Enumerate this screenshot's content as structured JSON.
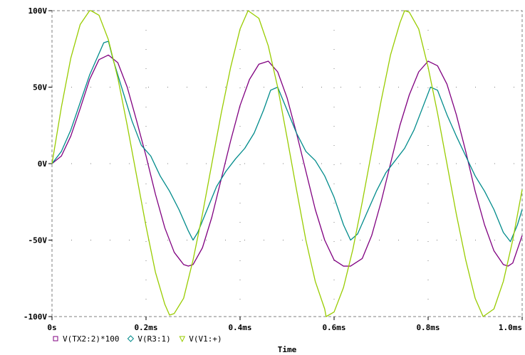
{
  "chart_data": {
    "type": "line",
    "xlabel": "Time",
    "ylabel": "",
    "xlim": [
      0,
      1.0
    ],
    "ylim": [
      -100,
      100
    ],
    "x_ticks": [
      0,
      0.2,
      0.4,
      0.6,
      0.8,
      1.0
    ],
    "x_tick_labels": [
      "0s",
      "0.2ms",
      "0.4ms",
      "0.6ms",
      "0.8ms",
      "1.0ms"
    ],
    "y_ticks": [
      100,
      50,
      0,
      -50,
      -100
    ],
    "y_tick_labels": [
      "100V",
      "50V",
      "0V",
      "-50V",
      "-100V"
    ],
    "grid": "dotted",
    "legend_position": "bottom-left",
    "series": [
      {
        "name": "V(TX2:2)*100",
        "color": "#800080",
        "marker": "square",
        "x": [
          0,
          0.02,
          0.04,
          0.06,
          0.08,
          0.1,
          0.12,
          0.14,
          0.16,
          0.18,
          0.2,
          0.22,
          0.24,
          0.26,
          0.28,
          0.29,
          0.3,
          0.32,
          0.34,
          0.36,
          0.38,
          0.4,
          0.42,
          0.44,
          0.46,
          0.48,
          0.5,
          0.52,
          0.54,
          0.56,
          0.58,
          0.6,
          0.62,
          0.635,
          0.66,
          0.68,
          0.7,
          0.72,
          0.74,
          0.76,
          0.78,
          0.8,
          0.82,
          0.84,
          0.86,
          0.88,
          0.9,
          0.92,
          0.94,
          0.96,
          0.97,
          0.98,
          1.0
        ],
        "y": [
          0,
          5,
          18,
          36,
          55,
          68,
          71,
          66,
          50,
          28,
          5,
          -20,
          -42,
          -58,
          -66,
          -67,
          -66,
          -55,
          -35,
          -10,
          15,
          38,
          55,
          65,
          67,
          60,
          43,
          20,
          -5,
          -30,
          -50,
          -63,
          -67,
          -67,
          -62,
          -47,
          -25,
          0,
          25,
          45,
          60,
          67,
          64,
          52,
          32,
          8,
          -18,
          -40,
          -57,
          -66,
          -67,
          -65,
          -47
        ]
      },
      {
        "name": "V(R3:1)",
        "color": "#008b8b",
        "marker": "diamond",
        "x": [
          0,
          0.02,
          0.04,
          0.06,
          0.08,
          0.1,
          0.11,
          0.12,
          0.13,
          0.15,
          0.17,
          0.19,
          0.21,
          0.23,
          0.25,
          0.27,
          0.29,
          0.3,
          0.31,
          0.33,
          0.35,
          0.37,
          0.39,
          0.41,
          0.43,
          0.45,
          0.465,
          0.48,
          0.5,
          0.52,
          0.54,
          0.56,
          0.58,
          0.6,
          0.62,
          0.635,
          0.65,
          0.67,
          0.69,
          0.71,
          0.73,
          0.75,
          0.77,
          0.79,
          0.805,
          0.82,
          0.84,
          0.86,
          0.88,
          0.9,
          0.92,
          0.94,
          0.96,
          0.975,
          0.99,
          1.0
        ],
        "y": [
          0,
          8,
          22,
          40,
          58,
          72,
          79,
          80,
          68,
          48,
          28,
          12,
          5,
          -8,
          -18,
          -30,
          -44,
          -50,
          -45,
          -30,
          -15,
          -5,
          3,
          10,
          20,
          35,
          48,
          50,
          35,
          20,
          8,
          2,
          -8,
          -22,
          -40,
          -50,
          -46,
          -32,
          -18,
          -6,
          2,
          10,
          22,
          38,
          50,
          48,
          32,
          18,
          5,
          -8,
          -18,
          -30,
          -45,
          -51,
          -40,
          -30
        ]
      },
      {
        "name": "V(V1:+)",
        "color": "#99cc00",
        "marker": "triangle",
        "x": [
          0,
          0.02,
          0.04,
          0.06,
          0.08,
          0.083,
          0.1,
          0.12,
          0.14,
          0.16,
          0.18,
          0.2,
          0.22,
          0.24,
          0.25,
          0.26,
          0.28,
          0.3,
          0.32,
          0.34,
          0.36,
          0.38,
          0.4,
          0.417,
          0.44,
          0.46,
          0.48,
          0.5,
          0.52,
          0.54,
          0.56,
          0.58,
          0.583,
          0.6,
          0.62,
          0.64,
          0.66,
          0.68,
          0.7,
          0.72,
          0.74,
          0.75,
          0.76,
          0.78,
          0.8,
          0.82,
          0.84,
          0.86,
          0.88,
          0.9,
          0.917,
          0.94,
          0.96,
          0.98,
          1.0
        ],
        "y": [
          0,
          37,
          69,
          91,
          100,
          100,
          97,
          81,
          56,
          25,
          -8,
          -41,
          -71,
          -92,
          -99,
          -98,
          -88,
          -63,
          -33,
          0,
          33,
          63,
          88,
          100,
          95,
          77,
          50,
          17,
          -17,
          -50,
          -77,
          -95,
          -100,
          -97,
          -81,
          -56,
          -25,
          8,
          41,
          71,
          92,
          100,
          99,
          88,
          63,
          33,
          0,
          -33,
          -63,
          -88,
          -100,
          -95,
          -77,
          -50,
          -17
        ]
      }
    ]
  }
}
